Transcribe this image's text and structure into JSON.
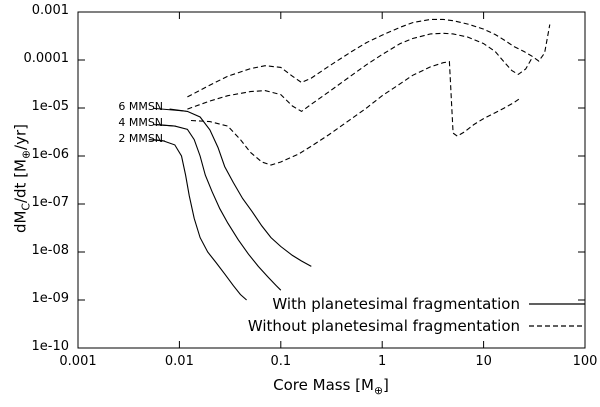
{
  "figure": {
    "background": "#ffffff",
    "line_color": "#000000"
  },
  "chart_data": {
    "type": "line",
    "scale": "log-log",
    "grid": false,
    "xlim": [
      0.001,
      100
    ],
    "ylim": [
      1e-10,
      0.001
    ],
    "xlabel": "Core Mass [M⊕]",
    "ylabel": "dMC/dt [M⊕/yr]",
    "xlabel_parts": {
      "p1": "Core Mass [M",
      "s1": "⊕",
      "p2": "]"
    },
    "ylabel_parts": {
      "p1": "dM",
      "s1": "C",
      "p2": "/dt [M",
      "s2": "⊕",
      "p3": "/yr]"
    },
    "x_ticks": [
      {
        "label": "0.001",
        "value": 0.001
      },
      {
        "label": "0.01",
        "value": 0.01
      },
      {
        "label": "0.1",
        "value": 0.1
      },
      {
        "label": "1",
        "value": 1
      },
      {
        "label": "10",
        "value": 10
      },
      {
        "label": "100",
        "value": 100
      }
    ],
    "y_ticks": [
      {
        "label": "0.001",
        "value": 0.001
      },
      {
        "label": "0.0001",
        "value": 0.0001
      },
      {
        "label": "1e-05",
        "value": 1e-05
      },
      {
        "label": "1e-06",
        "value": 1e-06
      },
      {
        "label": "1e-07",
        "value": 1e-07
      },
      {
        "label": "1e-08",
        "value": 1e-08
      },
      {
        "label": "1e-09",
        "value": 1e-09
      },
      {
        "label": "1e-10",
        "value": 1e-10
      }
    ],
    "legend": [
      {
        "label": "With planetesimal fragmentation",
        "style": "solid"
      },
      {
        "label": "Without planetesimal fragmentation",
        "style": "dashed"
      }
    ],
    "annotations": [
      {
        "text": "6 MMSN",
        "tx": 0.0025,
        "ty": 1.05e-05,
        "lx1": 0.0056,
        "ly1": 9.8e-06,
        "lx2": 0.0115,
        "ly2": 8.6e-06
      },
      {
        "text": "4 MMSN",
        "tx": 0.0025,
        "ty": 4.8e-06,
        "lx1": 0.0056,
        "ly1": 4.5e-06,
        "lx2": 0.0092,
        "ly2": 4.2e-06
      },
      {
        "text": "2 MMSN",
        "tx": 0.0025,
        "ty": 2.3e-06,
        "lx1": 0.0056,
        "ly1": 2.2e-06,
        "lx2": 0.0072,
        "ly2": 2.05e-06
      }
    ],
    "series": [
      {
        "id": "2mmsn-with-frag",
        "name": "2 MMSN with planetesimal fragmentation",
        "style": "solid",
        "points": [
          [
            0.005,
            2.2e-06
          ],
          [
            0.007,
            2.05e-06
          ],
          [
            0.009,
            1.7e-06
          ],
          [
            0.0105,
            1e-06
          ],
          [
            0.0115,
            4e-07
          ],
          [
            0.0125,
            1.5e-07
          ],
          [
            0.014,
            5e-08
          ],
          [
            0.016,
            2e-08
          ],
          [
            0.019,
            1e-08
          ],
          [
            0.023,
            6e-09
          ],
          [
            0.028,
            3.5e-09
          ],
          [
            0.034,
            2e-09
          ],
          [
            0.04,
            1.3e-09
          ],
          [
            0.046,
            1e-09
          ]
        ]
      },
      {
        "id": "4mmsn-with-frag",
        "name": "4 MMSN with planetesimal fragmentation",
        "style": "solid",
        "points": [
          [
            0.006,
            4.5e-06
          ],
          [
            0.009,
            4.2e-06
          ],
          [
            0.012,
            3.6e-06
          ],
          [
            0.014,
            2.2e-06
          ],
          [
            0.016,
            1e-06
          ],
          [
            0.018,
            4e-07
          ],
          [
            0.021,
            1.8e-07
          ],
          [
            0.025,
            8e-08
          ],
          [
            0.03,
            4e-08
          ],
          [
            0.038,
            1.8e-08
          ],
          [
            0.048,
            9e-09
          ],
          [
            0.06,
            5e-09
          ],
          [
            0.075,
            3e-09
          ],
          [
            0.09,
            2e-09
          ],
          [
            0.1,
            1.6e-09
          ]
        ]
      },
      {
        "id": "6mmsn-with-frag",
        "name": "6 MMSN with planetesimal fragmentation",
        "style": "solid",
        "points": [
          [
            0.008,
            9.5e-06
          ],
          [
            0.012,
            8.5e-06
          ],
          [
            0.016,
            6.5e-06
          ],
          [
            0.02,
            3.5e-06
          ],
          [
            0.024,
            1.5e-06
          ],
          [
            0.028,
            6e-07
          ],
          [
            0.034,
            2.8e-07
          ],
          [
            0.042,
            1.3e-07
          ],
          [
            0.052,
            7e-08
          ],
          [
            0.065,
            3.5e-08
          ],
          [
            0.08,
            2e-08
          ],
          [
            0.1,
            1.3e-08
          ],
          [
            0.13,
            8.5e-09
          ],
          [
            0.16,
            6.5e-09
          ],
          [
            0.2,
            5e-09
          ]
        ]
      },
      {
        "id": "2mmsn-no-frag",
        "name": "2 MMSN without planetesimal fragmentation",
        "style": "dashed",
        "points": [
          [
            0.013,
            5.5e-06
          ],
          [
            0.02,
            5.2e-06
          ],
          [
            0.03,
            4.2e-06
          ],
          [
            0.04,
            2.2e-06
          ],
          [
            0.05,
            1.2e-06
          ],
          [
            0.065,
            7.5e-07
          ],
          [
            0.08,
            6.5e-07
          ],
          [
            0.1,
            7.5e-07
          ],
          [
            0.15,
            1.1e-06
          ],
          [
            0.2,
            1.6e-06
          ],
          [
            0.3,
            2.8e-06
          ],
          [
            0.5,
            6e-06
          ],
          [
            0.7,
            1e-05
          ],
          [
            1,
            1.8e-05
          ],
          [
            1.5,
            3.2e-05
          ],
          [
            2,
            4.8e-05
          ],
          [
            3,
            7.2e-05
          ],
          [
            4,
            8.8e-05
          ],
          [
            4.6,
            9.2e-05
          ],
          [
            5,
            3e-06
          ],
          [
            5.5,
            2.6e-06
          ],
          [
            6.5,
            3.2e-06
          ],
          [
            8,
            4.5e-06
          ],
          [
            10,
            6e-06
          ],
          [
            13,
            8e-06
          ],
          [
            16,
            1e-05
          ],
          [
            20,
            1.3e-05
          ],
          [
            23,
            1.6e-05
          ]
        ]
      },
      {
        "id": "4mmsn-no-frag",
        "name": "4 MMSN without planetesimal fragmentation",
        "style": "dashed",
        "points": [
          [
            0.012,
            9.5e-06
          ],
          [
            0.02,
            1.4e-05
          ],
          [
            0.03,
            1.8e-05
          ],
          [
            0.05,
            2.2e-05
          ],
          [
            0.07,
            2.3e-05
          ],
          [
            0.1,
            1.9e-05
          ],
          [
            0.13,
            1.1e-05
          ],
          [
            0.16,
            8.5e-06
          ],
          [
            0.2,
            1.2e-05
          ],
          [
            0.3,
            2.2e-05
          ],
          [
            0.5,
            4.8e-05
          ],
          [
            0.7,
            8e-05
          ],
          [
            1,
            0.00013
          ],
          [
            1.5,
            0.00022
          ],
          [
            2,
            0.00028
          ],
          [
            3,
            0.00035
          ],
          [
            4,
            0.00036
          ],
          [
            5,
            0.00035
          ],
          [
            7,
            0.0003
          ],
          [
            10,
            0.00022
          ],
          [
            13,
            0.00015
          ],
          [
            16,
            9e-05
          ],
          [
            19,
            6e-05
          ],
          [
            22,
            5e-05
          ],
          [
            26,
            6.5e-05
          ],
          [
            30,
            0.00011
          ]
        ]
      },
      {
        "id": "6mmsn-no-frag",
        "name": "6 MMSN without planetesimal fragmentation",
        "style": "dashed",
        "points": [
          [
            0.012,
            1.7e-05
          ],
          [
            0.02,
            3e-05
          ],
          [
            0.03,
            4.6e-05
          ],
          [
            0.05,
            6.6e-05
          ],
          [
            0.07,
            7.6e-05
          ],
          [
            0.1,
            7e-05
          ],
          [
            0.13,
            4.6e-05
          ],
          [
            0.16,
            3.4e-05
          ],
          [
            0.2,
            4.2e-05
          ],
          [
            0.3,
            7.5e-05
          ],
          [
            0.5,
            0.00015
          ],
          [
            0.7,
            0.00023
          ],
          [
            1,
            0.00033
          ],
          [
            1.5,
            0.00048
          ],
          [
            2,
            0.0006
          ],
          [
            3,
            0.0007
          ],
          [
            4,
            0.0007
          ],
          [
            5,
            0.00066
          ],
          [
            7,
            0.00056
          ],
          [
            10,
            0.00044
          ],
          [
            13,
            0.00034
          ],
          [
            16,
            0.00026
          ],
          [
            20,
            0.00019
          ],
          [
            25,
            0.00015
          ],
          [
            30,
            0.00012
          ],
          [
            35,
            9.5e-05
          ],
          [
            40,
            0.00014
          ],
          [
            45,
            0.00055
          ]
        ]
      }
    ]
  }
}
